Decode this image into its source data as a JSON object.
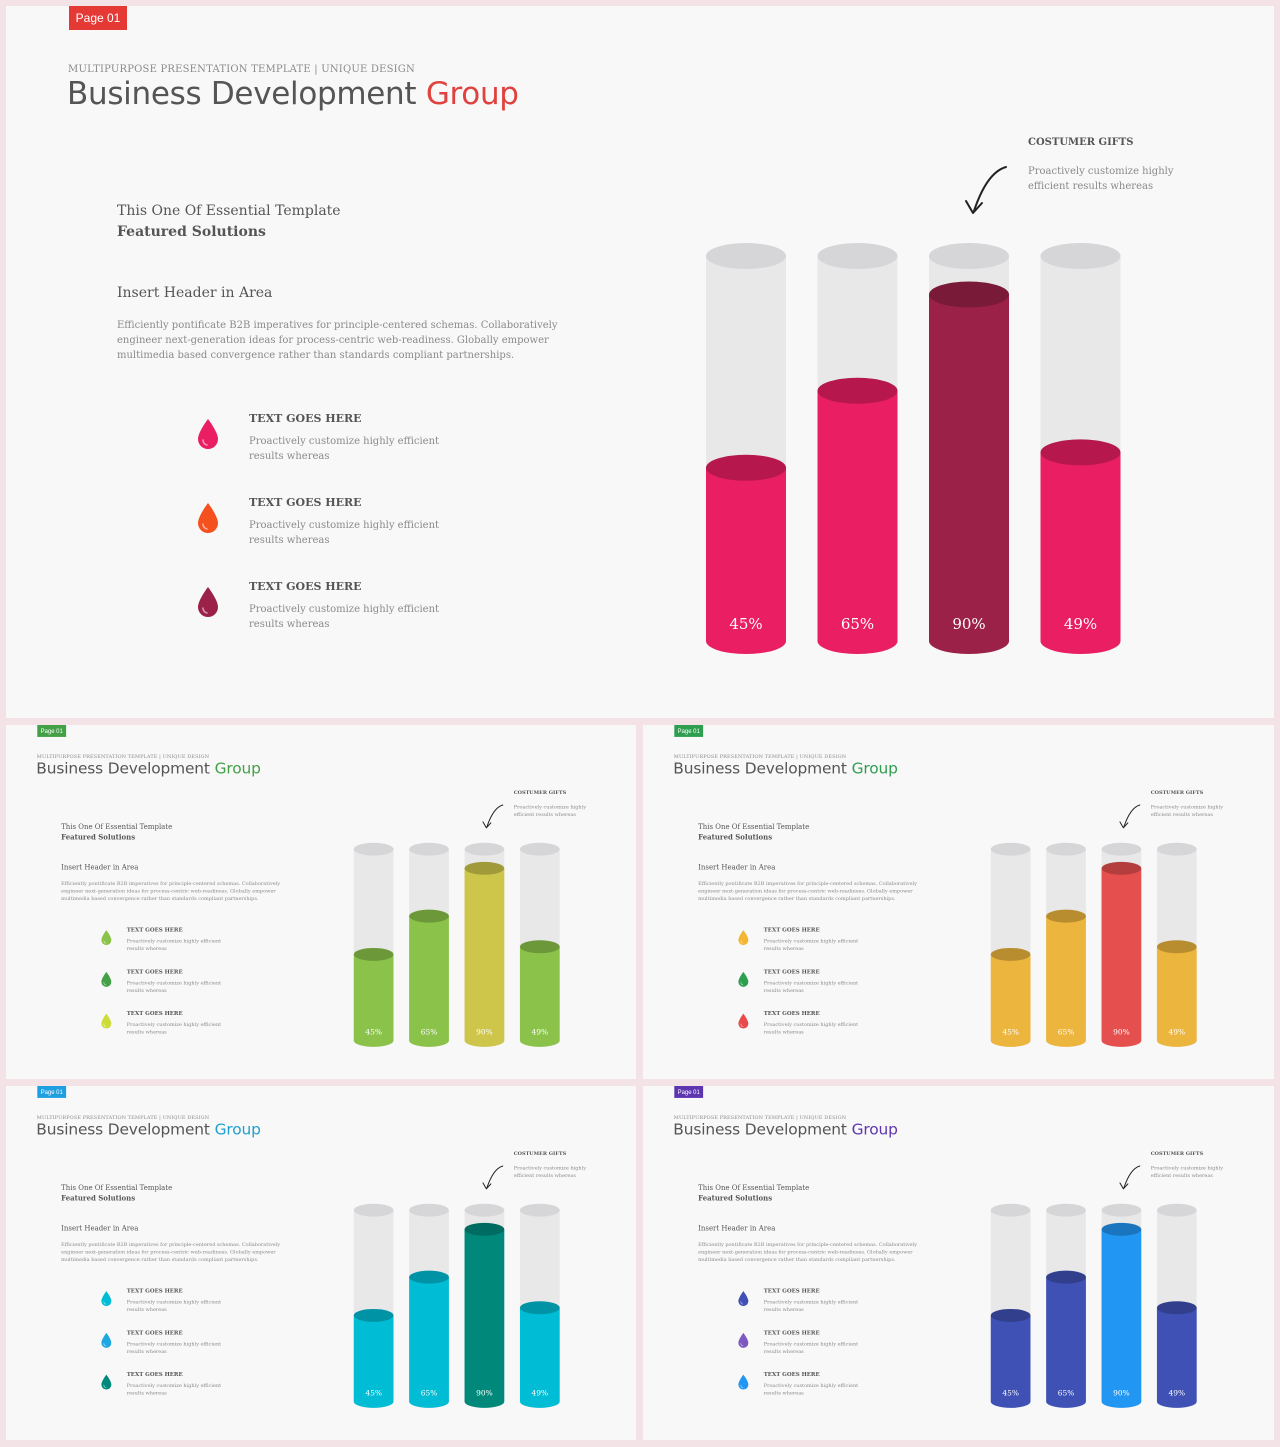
{
  "pages": [
    {
      "badge": "Page 01",
      "badge_color": "#e53935",
      "kicker": "MULTIPURPOSE PRESENTATION TEMPLATE | UNIQUE DESIGN",
      "title_main": "Business Development ",
      "title_accent": "Group",
      "accent_color": "#e0433f",
      "subtitle_1": "This One Of Essential  Template",
      "subtitle_2": "Featured Solutions",
      "header": "Insert Header  in Area",
      "body": "Efficiently pontificate B2B imperatives for principle-centered schemas. Collaboratively engineer next-generation ideas for process-centric web-readiness. Globally empower multimedia based convergence rather than standards compliant partnerships.",
      "items": [
        {
          "title": "TEXT GOES HERE",
          "desc": "Proactively customize highly efficient results whereas",
          "color": "#e91e63"
        },
        {
          "title": "TEXT GOES HERE",
          "desc": "Proactively customize highly efficient results whereas",
          "color": "#f4511e"
        },
        {
          "title": "TEXT GOES HERE",
          "desc": "Proactively customize highly efficient results whereas",
          "color": "#9c2149"
        }
      ],
      "gift_title": "COSTUMER GIFTS",
      "gift_desc": "Proactively customize highly efficient results  whereas",
      "chart_data": {
        "type": "bar",
        "values": [
          45,
          65,
          90,
          49
        ],
        "labels": [
          "45%",
          "65%",
          "90%",
          "49%"
        ],
        "colors": [
          "#e91e63",
          "#e91e63",
          "#9c2149",
          "#e91e63"
        ],
        "ylim": [
          0,
          100
        ]
      }
    },
    {
      "badge": "Page 01",
      "badge_color": "#43a047",
      "kicker": "MULTIPURPOSE PRESENTATION TEMPLATE | UNIQUE DESIGN",
      "title_main": "Business Development ",
      "title_accent": "Group",
      "accent_color": "#43a047",
      "subtitle_1": "This One Of Essential  Template",
      "subtitle_2": "Featured Solutions",
      "header": "Insert Header  in Area",
      "body": "Efficiently pontificate B2B imperatives for principle-centered schemas. Collaboratively engineer next-generation ideas for process-centric web-readiness. Globally empower multimedia based convergence rather than standards compliant partnerships.",
      "items": [
        {
          "title": "TEXT GOES HERE",
          "desc": "Proactively customize highly efficient results whereas",
          "color": "#8bc34a"
        },
        {
          "title": "TEXT GOES HERE",
          "desc": "Proactively customize highly efficient results whereas",
          "color": "#43a047"
        },
        {
          "title": "TEXT GOES HERE",
          "desc": "Proactively customize highly efficient results whereas",
          "color": "#cddc39"
        }
      ],
      "gift_title": "COSTUMER GIFTS",
      "gift_desc": "Proactively customize highly efficient results  whereas",
      "chart_data": {
        "type": "bar",
        "values": [
          45,
          65,
          90,
          49
        ],
        "labels": [
          "45%",
          "65%",
          "90%",
          "49%"
        ],
        "colors": [
          "#8bc34a",
          "#8bc34a",
          "#cdc64a",
          "#8bc34a"
        ],
        "ylim": [
          0,
          100
        ]
      }
    },
    {
      "badge": "Page 01",
      "badge_color": "#2e9e4f",
      "kicker": "MULTIPURPOSE PRESENTATION TEMPLATE | UNIQUE DESIGN",
      "title_main": "Business Development ",
      "title_accent": "Group",
      "accent_color": "#2e9e4f",
      "subtitle_1": "This One Of Essential  Template",
      "subtitle_2": "Featured Solutions",
      "header": "Insert Header  in Area",
      "body": "Efficiently pontificate B2B imperatives for principle-centered schemas. Collaboratively engineer next-generation ideas for process-centric web-readiness. Globally empower multimedia based convergence rather than standards compliant partnerships.",
      "items": [
        {
          "title": "TEXT GOES HERE",
          "desc": "Proactively customize highly efficient results whereas",
          "color": "#f2b632"
        },
        {
          "title": "TEXT GOES HERE",
          "desc": "Proactively customize highly efficient results whereas",
          "color": "#2e9e4f"
        },
        {
          "title": "TEXT GOES HERE",
          "desc": "Proactively customize highly efficient results whereas",
          "color": "#e94b4b"
        }
      ],
      "gift_title": "COSTUMER GIFTS",
      "gift_desc": "Proactively customize highly efficient results  whereas",
      "chart_data": {
        "type": "bar",
        "values": [
          45,
          65,
          90,
          49
        ],
        "labels": [
          "45%",
          "65%",
          "90%",
          "49%"
        ],
        "colors": [
          "#ecb53e",
          "#ecb53e",
          "#e5504e",
          "#ecb53e"
        ],
        "ylim": [
          0,
          100
        ]
      }
    },
    {
      "badge": "Page 01",
      "badge_color": "#1e9fe0",
      "kicker": "MULTIPURPOSE PRESENTATION TEMPLATE | UNIQUE DESIGN",
      "title_main": "Business Development ",
      "title_accent": "Group",
      "accent_color": "#1e9fd0",
      "subtitle_1": "This One Of Essential  Template",
      "subtitle_2": "Featured Solutions",
      "header": "Insert Header  in Area",
      "body": "Efficiently pontificate B2B imperatives for principle-centered schemas. Collaboratively engineer next-generation ideas for process-centric web-readiness. Globally empower multimedia based convergence rather than standards compliant partnerships.",
      "items": [
        {
          "title": "TEXT GOES HERE",
          "desc": "Proactively customize highly efficient results whereas",
          "color": "#00bcd4"
        },
        {
          "title": "TEXT GOES HERE",
          "desc": "Proactively customize highly efficient results whereas",
          "color": "#1ea7e0"
        },
        {
          "title": "TEXT GOES HERE",
          "desc": "Proactively customize highly efficient results whereas",
          "color": "#00897b"
        }
      ],
      "gift_title": "COSTUMER GIFTS",
      "gift_desc": "Proactively customize highly efficient results  whereas",
      "chart_data": {
        "type": "bar",
        "values": [
          45,
          65,
          90,
          49
        ],
        "labels": [
          "45%",
          "65%",
          "90%",
          "49%"
        ],
        "colors": [
          "#00bcd4",
          "#00bcd4",
          "#00897b",
          "#00bcd4"
        ],
        "ylim": [
          0,
          100
        ]
      }
    },
    {
      "badge": "Page 01",
      "badge_color": "#5e35b1",
      "kicker": "MULTIPURPOSE PRESENTATION TEMPLATE | UNIQUE DESIGN",
      "title_main": "Business Development ",
      "title_accent": "Group",
      "accent_color": "#5e35b1",
      "subtitle_1": "This One Of Essential  Template",
      "subtitle_2": "Featured Solutions",
      "header": "Insert Header  in Area",
      "body": "Efficiently pontificate B2B imperatives for principle-centered schemas. Collaboratively engineer next-generation ideas for process-centric web-readiness. Globally empower multimedia based convergence rather than standards compliant partnerships.",
      "items": [
        {
          "title": "TEXT GOES HERE",
          "desc": "Proactively customize highly efficient results whereas",
          "color": "#3f51b5"
        },
        {
          "title": "TEXT GOES HERE",
          "desc": "Proactively customize highly efficient results whereas",
          "color": "#7e57c2"
        },
        {
          "title": "TEXT GOES HERE",
          "desc": "Proactively customize highly efficient results whereas",
          "color": "#2196f3"
        }
      ],
      "gift_title": "COSTUMER GIFTS",
      "gift_desc": "Proactively customize highly efficient results  whereas",
      "chart_data": {
        "type": "bar",
        "values": [
          45,
          65,
          90,
          49
        ],
        "labels": [
          "45%",
          "65%",
          "90%",
          "49%"
        ],
        "colors": [
          "#3f51b5",
          "#3f51b5",
          "#2196f3",
          "#3f51b5"
        ],
        "ylim": [
          0,
          100
        ]
      }
    }
  ]
}
